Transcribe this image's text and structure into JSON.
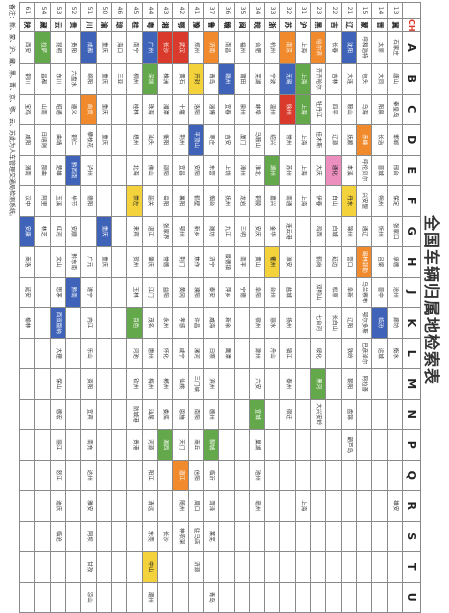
{
  "title": "全国车辆归属地检索表",
  "header": {
    "num_label": "",
    "prov_label": "CHINA",
    "columns": [
      "A",
      "B",
      "C",
      "D",
      "E",
      "F",
      "G",
      "H",
      "J",
      "K",
      "L",
      "M",
      "N",
      "P",
      "Q",
      "R",
      "S",
      "T",
      "U"
    ]
  },
  "colors": {
    "blue": "#3f63b8",
    "green": "#63a84a",
    "orange": "#f08a2c",
    "yellow": "#f4d23c",
    "red": "#d93a2b",
    "pink": "#ec8fbf"
  },
  "rows": [
    {
      "num": "13",
      "prov": "冀",
      "cells": [
        "石家庄",
        "唐山",
        "秦皇岛",
        "邯郸",
        "邢台",
        "保定",
        "张家口",
        "承德",
        "沧州",
        "廊坊",
        "衡水",
        "",
        "",
        "",
        "",
        "雄安",
        "",
        "",
        ""
      ],
      "colors": {}
    },
    {
      "num": "14",
      "prov": "晋",
      "cells": [
        "太原",
        "大同",
        "阳泉",
        "长治",
        "晋城",
        "朔州",
        "忻州",
        "吕梁",
        "晋中",
        "临汾",
        "运城",
        "",
        "",
        "",
        "",
        "",
        "",
        "",
        ""
      ],
      "colors": {
        "9": "blue"
      }
    },
    {
      "num": "15",
      "prov": "蒙",
      "cells": [
        "呼和浩特",
        "包头",
        "乌海",
        "赤峰",
        "呼伦贝尔",
        "兴安盟",
        "通辽",
        "锡林郭勒",
        "乌兰察布",
        "鄂尔多斯",
        "巴彦淖尔",
        "阿拉善",
        "",
        "",
        "",
        "",
        "",
        "",
        ""
      ],
      "colors": {
        "3": "orange",
        "7": "orange"
      }
    },
    {
      "num": "21",
      "prov": "辽",
      "cells": [
        "沈阳",
        "大连",
        "鞍山",
        "抚顺",
        "本溪",
        "丹东",
        "锦州",
        "营口",
        "阜新",
        "辽阳",
        "铁岭",
        "朝阳",
        "盘锦",
        "葫芦岛",
        "",
        "",
        "",
        "",
        ""
      ],
      "colors": {
        "0": "blue",
        "5": "yellow"
      }
    },
    {
      "num": "22",
      "prov": "吉",
      "cells": [
        "长春",
        "吉林",
        "四平",
        "辽源",
        "通化",
        "白山",
        "白城",
        "延边",
        "松原",
        "长白山",
        "",
        "",
        "",
        "",
        "",
        "",
        "",
        "",
        ""
      ],
      "colors": {
        "4": "pink"
      }
    },
    {
      "num": "23",
      "prov": "黑",
      "cells": [
        "哈尔滨",
        "齐齐哈尔",
        "牡丹江",
        "佳木斯",
        "大庆",
        "伊春",
        "鸡西",
        "鹤岗",
        "双鸭山",
        "七台河",
        "绥化",
        "黑河",
        "大兴安岭",
        "",
        "",
        "",
        "",
        "",
        ""
      ],
      "colors": {
        "0": "orange",
        "11": "green"
      }
    },
    {
      "num": "31",
      "prov": "沪",
      "cells": [
        "上海",
        "上海",
        "上海",
        "上海",
        "上海",
        "上海",
        "",
        "",
        "",
        "",
        "",
        "",
        "",
        "",
        "",
        "上海",
        "",
        "",
        ""
      ],
      "colors": {
        "1": "green",
        "2": "green"
      }
    },
    {
      "num": "32",
      "prov": "苏",
      "cells": [
        "南京",
        "无锡",
        "徐州",
        "常州",
        "苏州",
        "南通",
        "连云港",
        "淮安",
        "盐城",
        "扬州",
        "镇江",
        "泰州",
        "宿迁",
        "",
        "",
        "",
        "",
        "",
        ""
      ],
      "colors": {
        "0": "orange",
        "1": "blue",
        "2": "red"
      }
    },
    {
      "num": "33",
      "prov": "浙",
      "cells": [
        "杭州",
        "宁波",
        "温州",
        "绍兴",
        "湖州",
        "嘉兴",
        "金华",
        "衢州",
        "台州",
        "丽水",
        "舟山",
        "",
        "",
        "",
        "",
        "",
        "",
        "",
        ""
      ],
      "colors": {
        "4": "green",
        "7": "yellow"
      }
    },
    {
      "num": "34",
      "prov": "皖",
      "cells": [
        "合肥",
        "芜湖",
        "蚌埠",
        "马鞍山",
        "淮北",
        "铜陵",
        "安庆",
        "黄山",
        "阜阳",
        "宿州",
        "滁州",
        "六安",
        "宣城",
        "巢湖",
        "池州",
        "亳州",
        "",
        "",
        ""
      ],
      "colors": {
        "12": "green"
      }
    },
    {
      "num": "35",
      "prov": "闽",
      "cells": [
        "福州",
        "莆田",
        "泉州",
        "厦门",
        "漳州",
        "龙岩",
        "三明",
        "南平",
        "宁德",
        "",
        "",
        "",
        "",
        "",
        "",
        "",
        "",
        "",
        ""
      ],
      "colors": {}
    },
    {
      "num": "36",
      "prov": "赣",
      "cells": [
        "南昌",
        "赣州",
        "宜春",
        "吉安",
        "上饶",
        "抚州",
        "九江",
        "景德镇",
        "萍乡",
        "新余",
        "鹰潭",
        "",
        "",
        "",
        "",
        "",
        "",
        "",
        ""
      ],
      "colors": {
        "1": "blue"
      }
    },
    {
      "num": "37",
      "prov": "鲁",
      "cells": [
        "济南",
        "青岛",
        "淄博",
        "枣庄",
        "东营",
        "烟台",
        "潍坊",
        "济宁",
        "泰安",
        "威海",
        "日照",
        "滨州",
        "德州",
        "聊城",
        "临沂",
        "菏泽",
        "莱芜",
        "",
        "青岛"
      ],
      "colors": {
        "0": "orange",
        "13": "green"
      }
    },
    {
      "num": "41",
      "prov": "豫",
      "cells": [
        "郑州",
        "开封",
        "洛阳",
        "平顶山",
        "安阳",
        "鹤壁",
        "新乡",
        "焦作",
        "濮阳",
        "许昌",
        "漯河",
        "三门峡",
        "南阳",
        "商丘",
        "信阳",
        "周口",
        "驻马店",
        "济源",
        ""
      ],
      "colors": {
        "1": "yellow",
        "3": "blue"
      }
    },
    {
      "num": "42",
      "prov": "鄂",
      "cells": [
        "武汉",
        "黄石",
        "十堰",
        "荆州",
        "宜昌",
        "襄阳",
        "鄂州",
        "荆门",
        "黄冈",
        "孝感",
        "咸宁",
        "仙桃",
        "恩施",
        "天门",
        "潜江",
        "随州",
        "神农架",
        "",
        ""
      ],
      "colors": {
        "0": "red",
        "14": "orange"
      }
    },
    {
      "num": "43",
      "prov": "湘",
      "cells": [
        "长沙",
        "株洲",
        "湘潭",
        "衡阳",
        "邵阳",
        "岳阳",
        "张家界",
        "常德",
        "益阳",
        "永州",
        "怀化",
        "郴州",
        "娄底",
        "湘西",
        "",
        "",
        "长沙",
        "",
        ""
      ],
      "colors": {
        "0": "red",
        "13": "green"
      }
    },
    {
      "num": "44",
      "prov": "粤",
      "cells": [
        "广州",
        "深圳",
        "珠海",
        "汕头",
        "佛山",
        "韶关",
        "湛江",
        "肇庆",
        "江门",
        "茂名",
        "惠州",
        "梅州",
        "汕尾",
        "河源",
        "阳江",
        "清远",
        "东莞",
        "中山",
        "潮州"
      ],
      "colors": {
        "0": "blue",
        "1": "green",
        "17": "yellow"
      }
    },
    {
      "num": "45",
      "prov": "桂",
      "cells": [
        "南宁",
        "柳州",
        "桂林",
        "梧州",
        "北海",
        "崇左",
        "来宾",
        "贺州",
        "玉林",
        "百色",
        "河池",
        "钦州",
        "防城港",
        "贵港",
        "",
        "",
        "",
        "",
        ""
      ],
      "colors": {
        "5": "yellow",
        "9": "green"
      }
    },
    {
      "num": "46",
      "prov": "琼",
      "cells": [
        "海口",
        "三亚",
        "",
        "",
        "",
        "",
        "",
        "",
        "",
        "",
        "",
        "",
        "",
        "",
        "",
        "",
        "",
        "",
        ""
      ],
      "colors": {}
    },
    {
      "num": "50",
      "prov": "渝",
      "cells": [
        "重庆",
        "重庆",
        "重庆",
        "重庆",
        "",
        "",
        "重庆",
        "重庆",
        "",
        "",
        "",
        "",
        "",
        "",
        "",
        "",
        "",
        "",
        ""
      ],
      "colors": {
        "6": "blue"
      }
    },
    {
      "num": "51",
      "prov": "川",
      "cells": [
        "成都",
        "绵阳",
        "自贡",
        "攀枝花",
        "泸州",
        "德阳",
        "",
        "广元",
        "遂宁",
        "内江",
        "乐山",
        "资阳",
        "宜宾",
        "南充",
        "达州",
        "雅安",
        "阿坝",
        "甘孜",
        "凉山"
      ],
      "colors": {
        "0": "blue",
        "2": "orange"
      }
    },
    {
      "num": "52",
      "prov": "贵",
      "cells": [
        "贵阳",
        "六盘水",
        "遵义",
        "铜仁",
        "黔西南",
        "毕节",
        "安顺",
        "黔东南",
        "黔南",
        "",
        "",
        "",
        "",
        "",
        "",
        "",
        "",
        "",
        ""
      ],
      "colors": {
        "4": "blue",
        "8": "blue"
      }
    },
    {
      "num": "53",
      "prov": "云",
      "cells": [
        "昆明",
        "东川",
        "昭通",
        "曲靖",
        "楚雄",
        "玉溪",
        "红河",
        "文山",
        "思茅",
        "西双版纳",
        "大理",
        "保山",
        "德宏",
        "丽江",
        "怒江",
        "迪庆",
        "临沧",
        "",
        ""
      ],
      "colors": {
        "9": "blue"
      }
    },
    {
      "num": "54",
      "prov": "藏",
      "cells": [
        "拉萨",
        "昌都",
        "山南",
        "日喀则",
        "那曲",
        "阿里",
        "林芝",
        "",
        "",
        "",
        "",
        "",
        "",
        "",
        "",
        "",
        "",
        "",
        ""
      ],
      "colors": {
        "0": "green"
      }
    },
    {
      "num": "61",
      "prov": "陕",
      "cells": [
        "西安",
        "铜川",
        "宝鸡",
        "咸阳",
        "渭南",
        "汉中",
        "安康",
        "商洛",
        "延安",
        "榆林",
        "",
        "",
        "",
        "",
        "",
        "",
        "",
        "",
        ""
      ],
      "colors": {
        "6": "blue"
      }
    },
    {
      "num": "62",
      "prov": "甘",
      "cells": [
        "兰州",
        "嘉峪关",
        "金昌",
        "白银",
        "天水",
        "酒泉",
        "张掖",
        "武威",
        "定西",
        "陇南",
        "平凉",
        "庆阳",
        "临夏",
        "甘南",
        "",
        "",
        "",
        "",
        ""
      ],
      "colors": {
        "1": "blue",
        "11": "blue",
        "13": "blue"
      }
    },
    {
      "num": "63",
      "prov": "青",
      "cells": [
        "西宁",
        "海东",
        "海北",
        "黄南",
        "海南",
        "果洛",
        "玉树",
        "海西",
        "",
        "",
        "",
        "",
        "",
        "",
        "",
        "",
        "",
        "",
        ""
      ],
      "colors": {
        "5": "blue"
      }
    },
    {
      "num": "64",
      "prov": "宁",
      "cells": [
        "银川",
        "石嘴山",
        "吴忠",
        "固原",
        "中卫",
        "",
        "",
        "",
        "",
        "",
        "",
        "",
        "",
        "",
        "",
        "",
        "",
        "",
        ""
      ],
      "colors": {
        "4": "green"
      }
    },
    {
      "num": "65",
      "prov": "新",
      "cells": [
        "乌鲁木齐",
        "昌吉",
        "石河子",
        "奎屯",
        "博尔塔拉",
        "伊犁",
        "塔城",
        "阿勒泰",
        "克拉玛依",
        "博乐",
        "吐鲁番",
        "哈密",
        "巴音郭楞",
        "阿克苏",
        "克孜勒苏",
        "喀什",
        "和田",
        "",
        ""
      ],
      "colors": {
        "1": "blue",
        "2": "orange",
        "6": "green",
        "8": "blue",
        "9": "blue",
        "10": "green"
      }
    }
  ],
  "note": "备注：新、蒙、沪、藏、黑、晋、京、鄂、云、苏此为人车管理交通局检测系统。"
}
